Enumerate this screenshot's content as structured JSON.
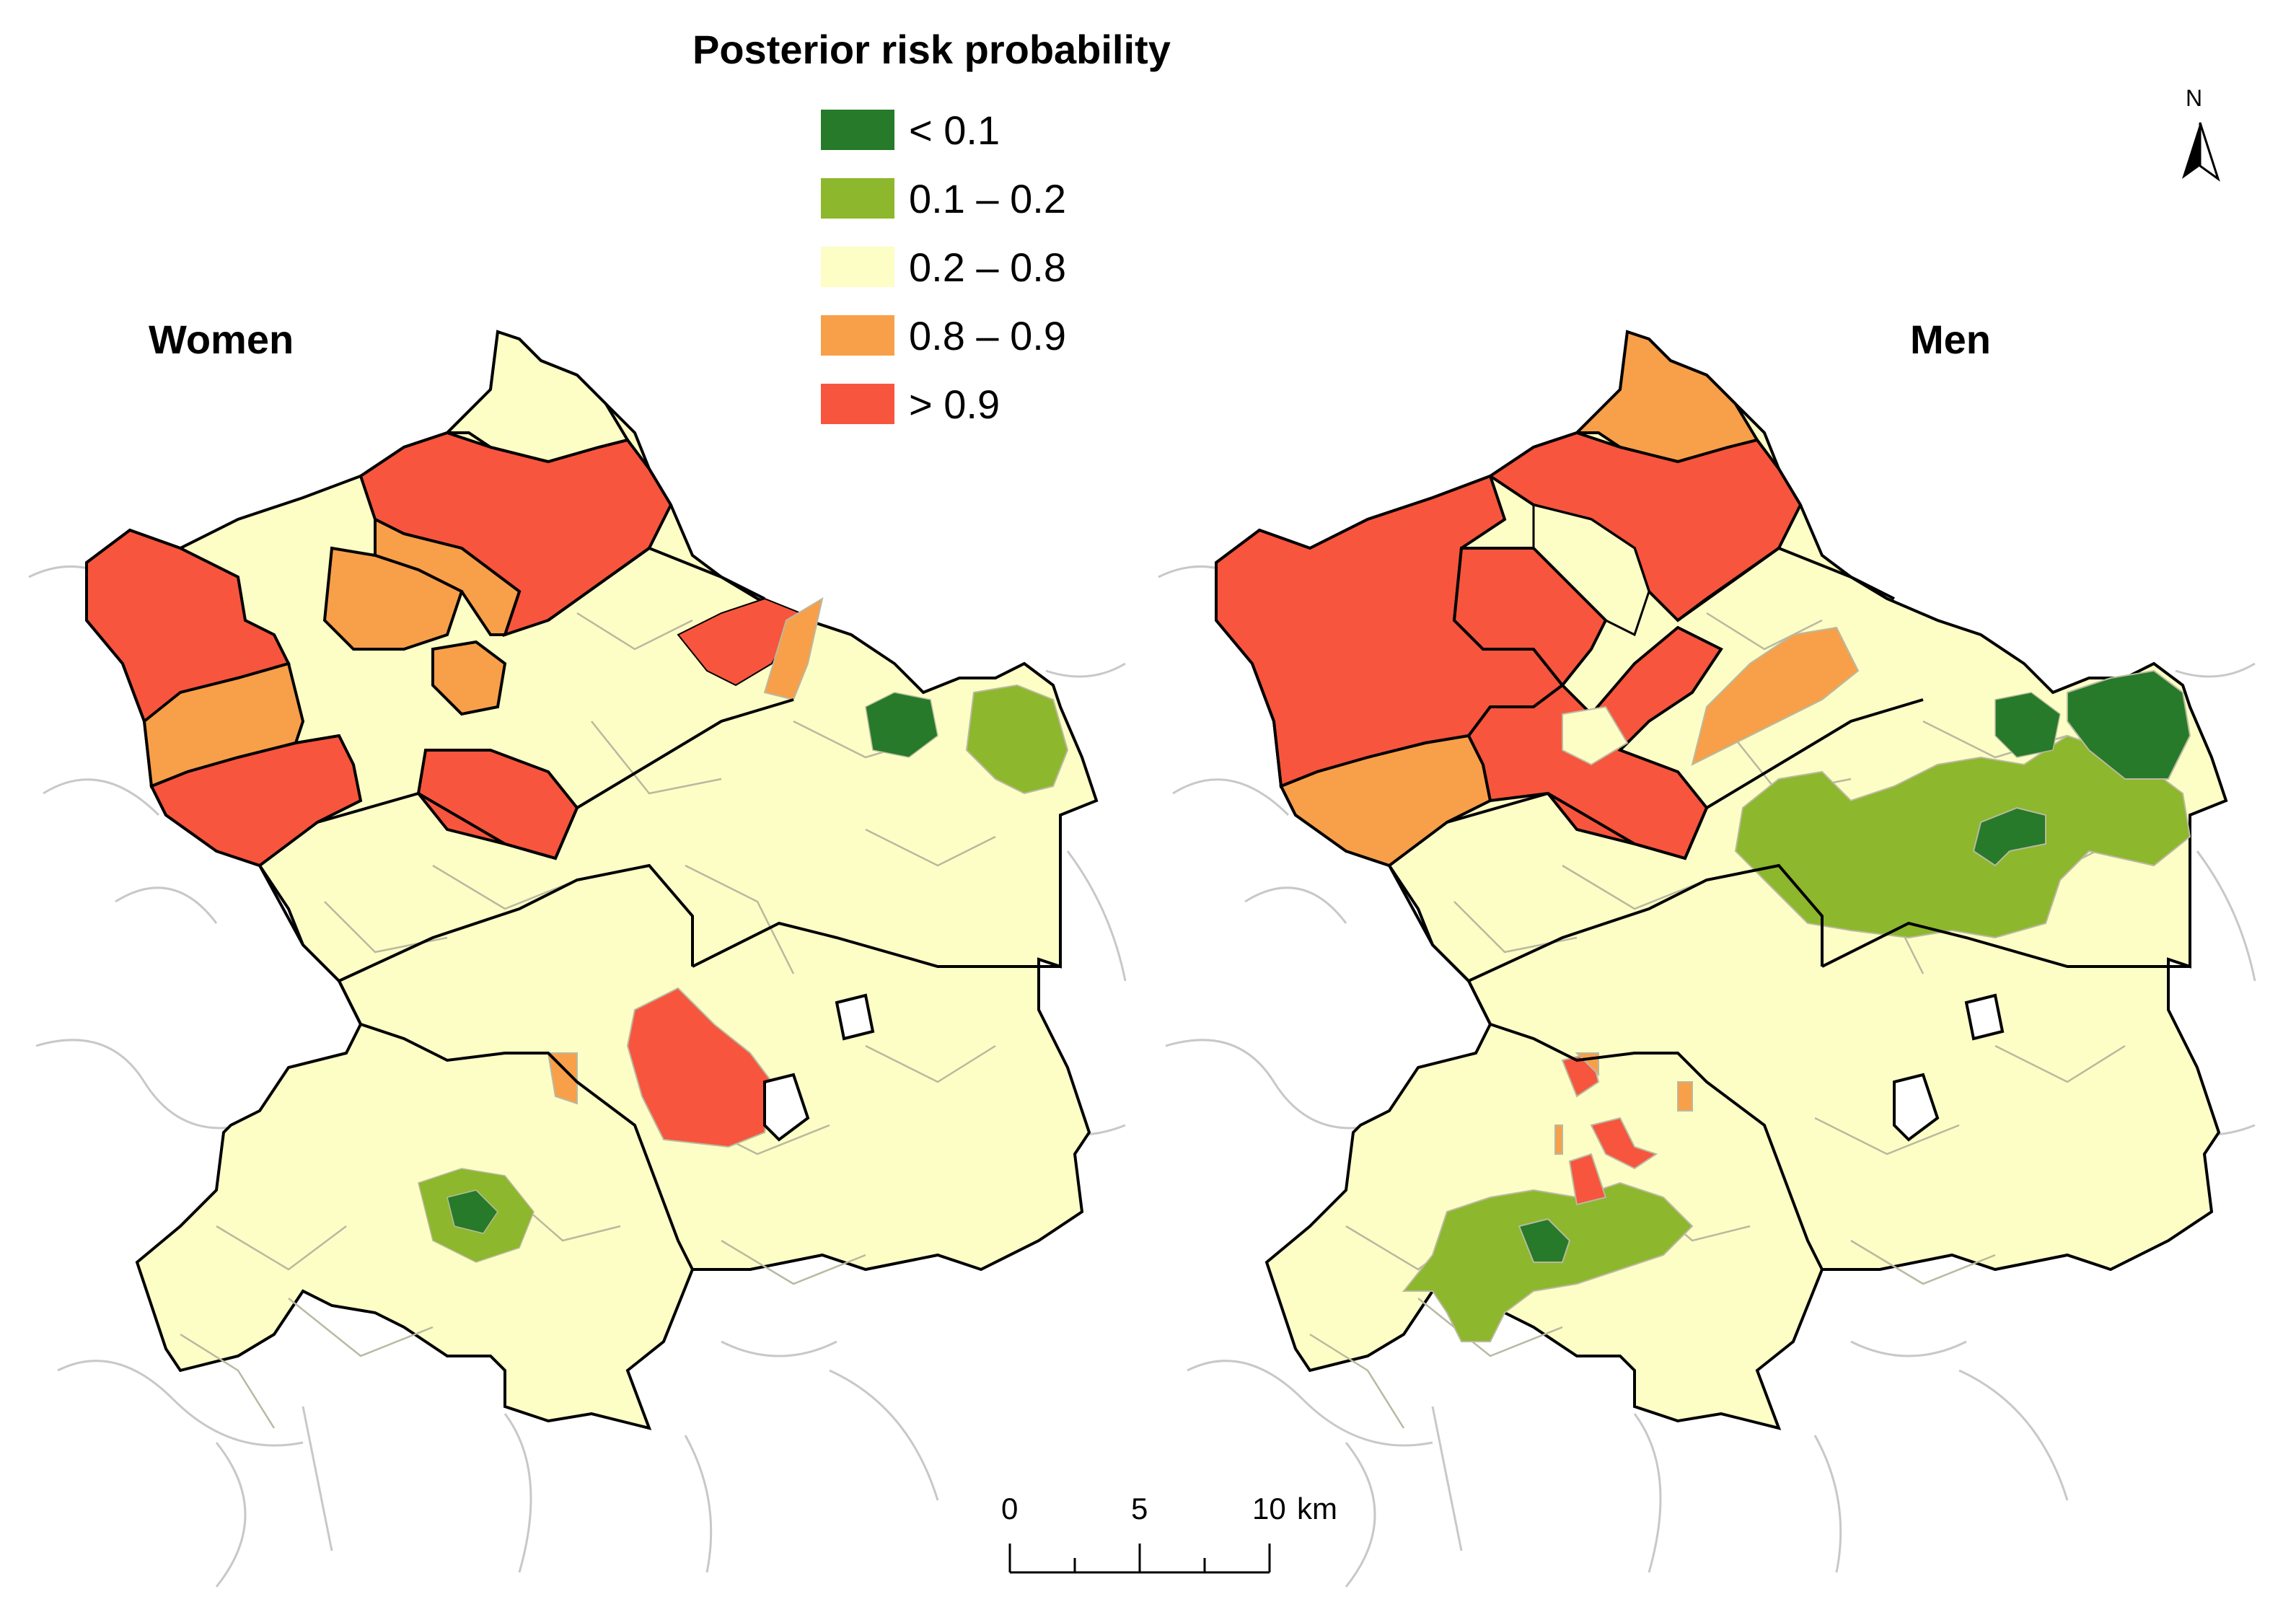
{
  "legend": {
    "title": "Posterior risk probability",
    "classes": [
      {
        "label": "< 0.1",
        "color": "#267a2a"
      },
      {
        "label": "0.1 – 0.2",
        "color": "#8db72c"
      },
      {
        "label": "0.2 – 0.8",
        "color": "#fdfdc6"
      },
      {
        "label": "0.8 – 0.9",
        "color": "#f89f4a"
      },
      {
        "label": "> 0.9",
        "color": "#f7553d"
      }
    ]
  },
  "panels": {
    "women": {
      "title": "Women"
    },
    "men": {
      "title": "Men"
    }
  },
  "north_arrow": {
    "letter": "N",
    "icon": "north-arrow-icon"
  },
  "scale_bar": {
    "ticks": [
      "0",
      "5",
      "10"
    ],
    "unit": "km"
  },
  "colors": {
    "outline": "#000000",
    "internal_border": "#b9b9a0",
    "background_border": "#c8c8c8"
  }
}
